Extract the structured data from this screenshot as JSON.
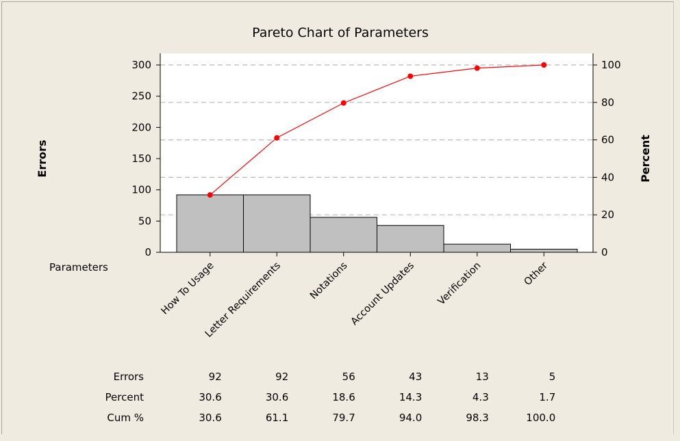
{
  "chart_data": {
    "type": "pareto",
    "title": "Pareto Chart of Parameters",
    "ylabel_left": "Errors",
    "ylabel_right": "Percent",
    "xlabel": "Parameters",
    "ylim_left": [
      0,
      300
    ],
    "ylim_right": [
      0,
      100
    ],
    "left_ticks": [
      0,
      50,
      100,
      150,
      200,
      250,
      300
    ],
    "right_ticks": [
      0,
      20,
      40,
      60,
      80,
      100
    ],
    "grid": "dashed horizontal",
    "categories": [
      "How To Usage",
      "Letter Requirements",
      "Notations",
      "Account Updates",
      "Verification",
      "Other"
    ],
    "series": [
      {
        "type": "bar",
        "values": [
          92,
          92,
          56,
          43,
          13,
          5
        ]
      },
      {
        "type": "line",
        "values": [
          30.6,
          61.1,
          79.7,
          94.0,
          98.3,
          100.0
        ]
      }
    ],
    "bar_color": "#c0c0c0",
    "line_color": "#ff0000",
    "table": {
      "row_labels": [
        "Errors",
        "Percent",
        "Cum %"
      ],
      "rows": [
        [
          "92",
          "92",
          "56",
          "43",
          "13",
          "5"
        ],
        [
          "30.6",
          "30.6",
          "18.6",
          "14.3",
          "4.3",
          "1.7"
        ],
        [
          "30.6",
          "61.1",
          "79.7",
          "94.0",
          "98.3",
          "100.0"
        ]
      ]
    }
  }
}
